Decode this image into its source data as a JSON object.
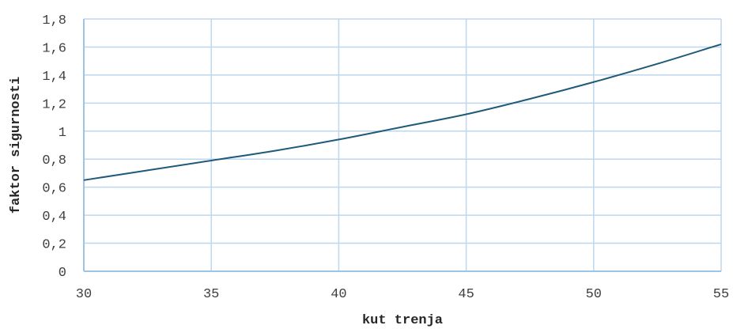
{
  "chart_data": {
    "type": "line",
    "xlabel": "kut trenja",
    "ylabel": "faktor sigurnosti",
    "xlim": [
      30,
      55
    ],
    "ylim": [
      0,
      1.8
    ],
    "x_ticks": [
      30,
      35,
      40,
      45,
      50,
      55
    ],
    "x_tick_labels": [
      "30",
      "35",
      "40",
      "45",
      "50",
      "55"
    ],
    "y_ticks": [
      0,
      0.2,
      0.4,
      0.6,
      0.8,
      1,
      1.2,
      1.4,
      1.6,
      1.8
    ],
    "y_tick_labels": [
      "0",
      "0,2",
      "0,4",
      "0,6",
      "0,8",
      "1",
      "1,2",
      "1,4",
      "1,6",
      "1,8"
    ],
    "grid": true,
    "legend": "none",
    "colors": {
      "line": "#1f5a7a",
      "grid": "#bdd7ee",
      "axis": "#9dc3e6"
    },
    "series": [
      {
        "x": [
          30,
          32.5,
          35,
          37.5,
          40,
          42.5,
          45,
          47.5,
          50,
          52.5,
          55
        ],
        "y": [
          0.65,
          0.72,
          0.79,
          0.86,
          0.94,
          1.03,
          1.12,
          1.23,
          1.35,
          1.48,
          1.62
        ]
      }
    ]
  }
}
